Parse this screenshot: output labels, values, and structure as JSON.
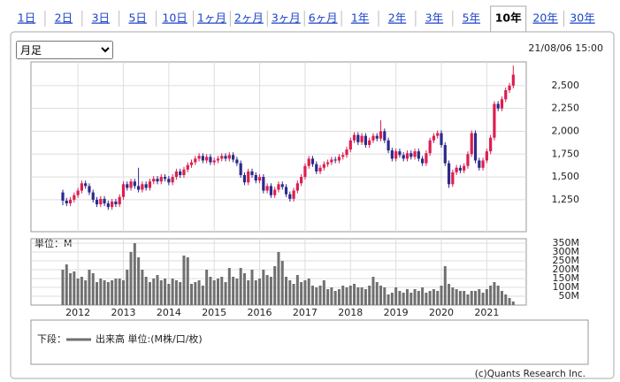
{
  "tabs": [
    {
      "label": "1日"
    },
    {
      "label": "2日"
    },
    {
      "label": "3日"
    },
    {
      "label": "5日"
    },
    {
      "label": "10日"
    },
    {
      "label": "1ヶ月"
    },
    {
      "label": "2ヶ月"
    },
    {
      "label": "3ヶ月"
    },
    {
      "label": "6ヶ月"
    },
    {
      "label": "1年"
    },
    {
      "label": "2年"
    },
    {
      "label": "3年"
    },
    {
      "label": "5年"
    },
    {
      "label": "10年",
      "active": true
    },
    {
      "label": "20年"
    },
    {
      "label": "30年"
    }
  ],
  "period_select": "月足",
  "timestamp": "21/08/06 15:00",
  "legend_prefix": "下段：",
  "copyright": "(c)Quants Research Inc.",
  "chart_data": {
    "type": "candlestick",
    "up_color": "#dc1e50",
    "down_color": "#2a2a8c",
    "grid": true,
    "categories": [
      null,
      null,
      null,
      null,
      "2012",
      null,
      null,
      null,
      null,
      null,
      null,
      null,
      null,
      null,
      null,
      null,
      "2013",
      null,
      null,
      null,
      null,
      null,
      null,
      null,
      null,
      null,
      null,
      null,
      "2014",
      null,
      null,
      null,
      null,
      null,
      null,
      null,
      null,
      null,
      null,
      null,
      "2015",
      null,
      null,
      null,
      null,
      null,
      null,
      null,
      null,
      null,
      null,
      null,
      "2016",
      null,
      null,
      null,
      null,
      null,
      null,
      null,
      null,
      null,
      null,
      null,
      "2017",
      null,
      null,
      null,
      null,
      null,
      null,
      null,
      null,
      null,
      null,
      null,
      "2018",
      null,
      null,
      null,
      null,
      null,
      null,
      null,
      null,
      null,
      null,
      null,
      "2019",
      null,
      null,
      null,
      null,
      null,
      null,
      null,
      null,
      null,
      null,
      null,
      "2020",
      null,
      null,
      null,
      null,
      null,
      null,
      null,
      null,
      null,
      null,
      null,
      "2021",
      null,
      null,
      null,
      null,
      null,
      null,
      null
    ],
    "open": [
      1330,
      1240,
      1210,
      1250,
      1300,
      1350,
      1430,
      1400,
      1330,
      1250,
      1200,
      1260,
      1210,
      1170,
      1230,
      1200,
      1280,
      1420,
      1380,
      1450,
      1400,
      1360,
      1420,
      1380,
      1450,
      1480,
      1450,
      1500,
      1480,
      1440,
      1500,
      1560,
      1520,
      1580,
      1630,
      1660,
      1700,
      1730,
      1680,
      1720,
      1660,
      1680,
      1700,
      1730,
      1700,
      1740,
      1690,
      1650,
      1520,
      1440,
      1560,
      1520,
      1460,
      1500,
      1350,
      1400,
      1300,
      1360,
      1420,
      1390,
      1310,
      1260,
      1350,
      1430,
      1500,
      1620,
      1700,
      1640,
      1560,
      1600,
      1640,
      1660,
      1690,
      1680,
      1720,
      1740,
      1800,
      1900,
      1960,
      1880,
      1950,
      1850,
      1900,
      1950,
      1920,
      2000,
      1900,
      1790,
      1700,
      1780,
      1740,
      1700,
      1760,
      1720,
      1780,
      1700,
      1650,
      1760,
      1900,
      1950,
      1980,
      1850,
      1650,
      1420,
      1550,
      1600,
      1570,
      1620,
      1750,
      1980,
      1680,
      1600,
      1680,
      1780,
      1930,
      2300,
      2250,
      2350,
      2450,
      2500
    ],
    "high": [
      1360,
      1270,
      1280,
      1330,
      1380,
      1460,
      1460,
      1430,
      1360,
      1280,
      1290,
      1290,
      1240,
      1260,
      1260,
      1310,
      1450,
      1450,
      1480,
      1480,
      1600,
      1450,
      1450,
      1480,
      1510,
      1510,
      1530,
      1530,
      1510,
      1530,
      1590,
      1590,
      1610,
      1660,
      1690,
      1730,
      1760,
      1760,
      1750,
      1750,
      1710,
      1730,
      1760,
      1760,
      1770,
      1770,
      1720,
      1680,
      1550,
      1590,
      1590,
      1550,
      1530,
      1530,
      1430,
      1430,
      1390,
      1450,
      1450,
      1420,
      1340,
      1380,
      1460,
      1530,
      1650,
      1730,
      1730,
      1670,
      1630,
      1670,
      1690,
      1720,
      1720,
      1750,
      1770,
      1830,
      1930,
      1990,
      1990,
      1980,
      1980,
      1930,
      1980,
      1980,
      2120,
      2030,
      1930,
      1820,
      1810,
      1810,
      1770,
      1790,
      1790,
      1810,
      1810,
      1730,
      1790,
      1930,
      1980,
      2010,
      2010,
      1880,
      1680,
      1580,
      1630,
      1630,
      1650,
      1780,
      2010,
      2010,
      1710,
      1710,
      1810,
      1960,
      2330,
      2330,
      2380,
      2480,
      2530,
      2720
    ],
    "low": [
      1190,
      1180,
      1180,
      1220,
      1270,
      1320,
      1370,
      1300,
      1220,
      1170,
      1170,
      1180,
      1140,
      1140,
      1170,
      1170,
      1250,
      1350,
      1350,
      1370,
      1330,
      1330,
      1350,
      1350,
      1420,
      1420,
      1420,
      1450,
      1410,
      1410,
      1470,
      1490,
      1490,
      1550,
      1600,
      1630,
      1670,
      1650,
      1650,
      1630,
      1630,
      1650,
      1670,
      1670,
      1670,
      1660,
      1620,
      1490,
      1410,
      1410,
      1490,
      1430,
      1430,
      1320,
      1320,
      1270,
      1270,
      1330,
      1360,
      1280,
      1230,
      1230,
      1320,
      1400,
      1470,
      1590,
      1610,
      1530,
      1530,
      1570,
      1610,
      1630,
      1650,
      1650,
      1690,
      1710,
      1770,
      1870,
      1850,
      1850,
      1820,
      1820,
      1870,
      1890,
      1890,
      1870,
      1760,
      1670,
      1670,
      1710,
      1670,
      1670,
      1690,
      1690,
      1670,
      1620,
      1620,
      1730,
      1870,
      1920,
      1820,
      1620,
      1380,
      1390,
      1520,
      1540,
      1540,
      1590,
      1720,
      1650,
      1570,
      1570,
      1650,
      1750,
      1900,
      2220,
      2220,
      2320,
      2420,
      2470
    ],
    "close": [
      1240,
      1210,
      1250,
      1300,
      1350,
      1430,
      1400,
      1330,
      1250,
      1200,
      1260,
      1210,
      1170,
      1230,
      1200,
      1280,
      1420,
      1380,
      1450,
      1400,
      1360,
      1420,
      1380,
      1450,
      1480,
      1450,
      1500,
      1480,
      1440,
      1500,
      1560,
      1520,
      1580,
      1630,
      1660,
      1700,
      1730,
      1680,
      1720,
      1660,
      1680,
      1700,
      1730,
      1700,
      1740,
      1690,
      1650,
      1520,
      1440,
      1560,
      1520,
      1460,
      1500,
      1350,
      1400,
      1300,
      1360,
      1420,
      1390,
      1310,
      1260,
      1350,
      1430,
      1500,
      1620,
      1700,
      1640,
      1560,
      1600,
      1640,
      1660,
      1690,
      1680,
      1720,
      1740,
      1800,
      1900,
      1960,
      1880,
      1950,
      1850,
      1900,
      1950,
      1920,
      2000,
      1900,
      1790,
      1700,
      1780,
      1740,
      1700,
      1760,
      1720,
      1780,
      1700,
      1650,
      1760,
      1900,
      1950,
      1980,
      1850,
      1650,
      1420,
      1550,
      1600,
      1570,
      1620,
      1750,
      1980,
      1680,
      1600,
      1680,
      1780,
      1930,
      2300,
      2250,
      2350,
      2450,
      2500,
      2620
    ],
    "ylim": [
      900,
      2760
    ],
    "yticks": [
      {
        "value": 1250,
        "label": "1,250"
      },
      {
        "value": 1500,
        "label": "1,500"
      },
      {
        "value": 1750,
        "label": "1,750"
      },
      {
        "value": 2000,
        "label": "2,000"
      },
      {
        "value": 2250,
        "label": "2,250"
      },
      {
        "value": 2500,
        "label": "2,500"
      }
    ],
    "volume": {
      "name": "出来高 単位:(M株/口/枚)",
      "unit_label": "単位：M",
      "color": "#707070",
      "values": [
        200,
        230,
        180,
        190,
        150,
        160,
        140,
        200,
        180,
        130,
        150,
        140,
        130,
        140,
        150,
        150,
        140,
        200,
        300,
        350,
        270,
        200,
        160,
        130,
        150,
        170,
        140,
        150,
        120,
        150,
        140,
        130,
        280,
        270,
        120,
        130,
        140,
        110,
        200,
        160,
        140,
        150,
        160,
        130,
        210,
        160,
        150,
        210,
        180,
        140,
        200,
        140,
        150,
        200,
        170,
        160,
        220,
        300,
        250,
        160,
        140,
        120,
        170,
        130,
        140,
        150,
        110,
        100,
        110,
        140,
        90,
        100,
        80,
        90,
        110,
        100,
        110,
        120,
        100,
        100,
        90,
        110,
        160,
        130,
        110,
        100,
        60,
        70,
        100,
        80,
        70,
        90,
        70,
        90,
        80,
        100,
        70,
        80,
        90,
        80,
        110,
        220,
        120,
        100,
        90,
        80,
        80,
        60,
        80,
        80,
        90,
        70,
        90,
        110,
        130,
        110,
        80,
        60,
        40,
        20
      ],
      "ylim": [
        0,
        375
      ],
      "yticks": [
        {
          "value": 50,
          "label": "50M"
        },
        {
          "value": 100,
          "label": "100M"
        },
        {
          "value": 150,
          "label": "150M"
        },
        {
          "value": 200,
          "label": "200M"
        },
        {
          "value": 250,
          "label": "250M"
        },
        {
          "value": 300,
          "label": "300M"
        },
        {
          "value": 350,
          "label": "350M"
        }
      ]
    }
  }
}
